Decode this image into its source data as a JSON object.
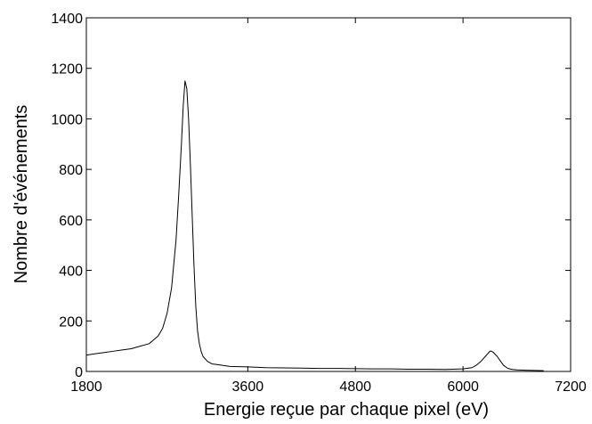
{
  "chart_data": {
    "type": "line",
    "title": "",
    "xlabel": "Energie reçue par chaque pixel (eV)",
    "ylabel": "Nombre d'événements",
    "xlim": [
      1800,
      7200
    ],
    "ylim": [
      0,
      1400
    ],
    "xticks": [
      1800,
      3600,
      4800,
      6000,
      7200
    ],
    "yticks": [
      0,
      200,
      400,
      600,
      800,
      1000,
      1200,
      1400
    ],
    "grid": false,
    "legend": "none",
    "line_color": "#000000",
    "series": [
      {
        "x": [
          1800,
          1900,
          2000,
          2100,
          2200,
          2300,
          2400,
          2500,
          2600,
          2650,
          2700,
          2750,
          2800,
          2830,
          2860,
          2880,
          2900,
          2920,
          2940,
          2960,
          2980,
          3000,
          3020,
          3040,
          3060,
          3080,
          3100,
          3150,
          3200,
          3300,
          3400,
          3600,
          3800,
          4000,
          4200,
          4400,
          4600,
          4800,
          5000,
          5200,
          5400,
          5600,
          5800,
          6000,
          6100,
          6150,
          6200,
          6250,
          6300,
          6320,
          6340,
          6380,
          6420,
          6450,
          6500,
          6550,
          6600,
          6700,
          6800,
          6900
        ],
        "y": [
          65,
          70,
          75,
          80,
          85,
          90,
          100,
          110,
          140,
          170,
          230,
          330,
          520,
          700,
          900,
          1050,
          1150,
          1120,
          1000,
          820,
          620,
          420,
          260,
          160,
          110,
          80,
          60,
          40,
          30,
          25,
          20,
          18,
          15,
          14,
          13,
          12,
          12,
          11,
          10,
          10,
          9,
          9,
          8,
          10,
          15,
          25,
          40,
          60,
          80,
          80,
          75,
          60,
          40,
          25,
          12,
          8,
          6,
          5,
          4,
          3
        ]
      }
    ]
  }
}
